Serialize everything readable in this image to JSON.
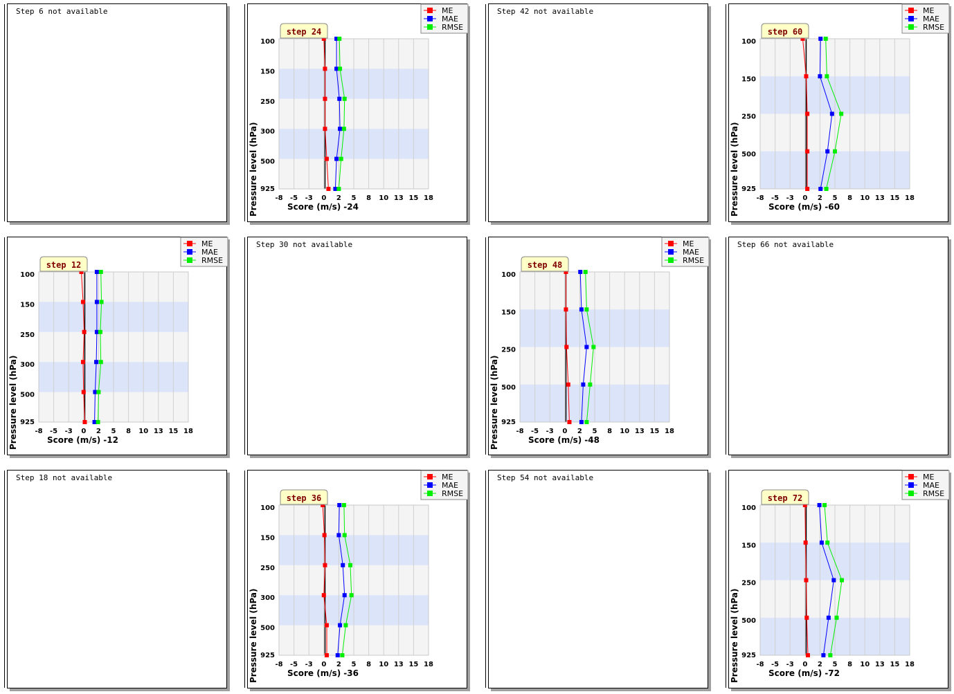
{
  "colors": {
    "ME": "#ff0000",
    "MAE": "#0000ff",
    "RMSE": "#00ee00",
    "band": "#dce4fa",
    "plot_bg": "#f4f4f4"
  },
  "legend": [
    "ME",
    "MAE",
    "RMSE"
  ],
  "axis": {
    "xlabel": "Score (m/s)",
    "ylabel": "Pressure level (hPa)"
  },
  "panels": [
    {
      "id": "p6",
      "available": false,
      "text": "Step 6 not available"
    },
    {
      "id": "p24",
      "available": true,
      "step_label": "step 24",
      "x_suffix": "-24"
    },
    {
      "id": "p42",
      "available": false,
      "text": "Step 42 not available"
    },
    {
      "id": "p60",
      "available": true,
      "step_label": "step 60",
      "x_suffix": "-60"
    },
    {
      "id": "p12",
      "available": true,
      "step_label": "step 12",
      "x_suffix": "-12"
    },
    {
      "id": "p30",
      "available": false,
      "text": "Step 30 not available"
    },
    {
      "id": "p48",
      "available": true,
      "step_label": "step 48",
      "x_suffix": "-48"
    },
    {
      "id": "p66",
      "available": false,
      "text": "Step 66 not available"
    },
    {
      "id": "p18",
      "available": false,
      "text": "Step 18 not available"
    },
    {
      "id": "p36",
      "available": true,
      "step_label": "step 36",
      "x_suffix": "-36"
    },
    {
      "id": "p54",
      "available": false,
      "text": "Step 54 not available"
    },
    {
      "id": "p72",
      "available": true,
      "step_label": "step 72",
      "x_suffix": "-72"
    }
  ],
  "chart_data": [
    {
      "type": "line",
      "step": 24,
      "levels": [
        "100",
        "150",
        "250",
        "300",
        "500",
        "925"
      ],
      "x_ticks": [
        "-8",
        "-5",
        "-3",
        "0",
        "2",
        "5",
        "8",
        "10",
        "13",
        "15",
        "18"
      ],
      "xlim": [
        -8,
        18
      ],
      "series": [
        {
          "name": "ME",
          "values": [
            -0.2,
            0.0,
            0.0,
            0.0,
            0.3,
            0.6
          ]
        },
        {
          "name": "MAE",
          "values": [
            2.0,
            2.0,
            2.5,
            2.6,
            2.0,
            1.8
          ]
        },
        {
          "name": "RMSE",
          "values": [
            2.5,
            2.6,
            3.4,
            3.3,
            2.8,
            2.4
          ]
        }
      ]
    },
    {
      "type": "line",
      "step": 60,
      "levels": [
        "100",
        "150",
        "250",
        "500",
        "925"
      ],
      "x_ticks": [
        "-8",
        "-5",
        "-3",
        "0",
        "2",
        "5",
        "8",
        "10",
        "13",
        "15",
        "18"
      ],
      "xlim": [
        -8,
        18
      ],
      "series": [
        {
          "name": "ME",
          "values": [
            -0.6,
            0.0,
            0.2,
            0.2,
            0.2
          ]
        },
        {
          "name": "MAE",
          "values": [
            2.5,
            2.4,
            4.5,
            3.7,
            2.5
          ]
        },
        {
          "name": "RMSE",
          "values": [
            3.4,
            3.6,
            6.1,
            5.0,
            3.5
          ]
        }
      ]
    },
    {
      "type": "line",
      "step": 12,
      "levels": [
        "100",
        "150",
        "250",
        "300",
        "500",
        "925"
      ],
      "x_ticks": [
        "-8",
        "-5",
        "-3",
        "0",
        "2",
        "5",
        "8",
        "10",
        "13",
        "15",
        "18"
      ],
      "xlim": [
        -8,
        18
      ],
      "series": [
        {
          "name": "ME",
          "values": [
            -0.6,
            -0.3,
            -0.1,
            -0.3,
            -0.2,
            0.0
          ]
        },
        {
          "name": "MAE",
          "values": [
            2.1,
            2.1,
            2.1,
            2.0,
            1.8,
            1.7
          ]
        },
        {
          "name": "RMSE",
          "values": [
            2.8,
            2.9,
            2.7,
            2.8,
            2.4,
            2.3
          ]
        }
      ]
    },
    {
      "type": "line",
      "step": 48,
      "levels": [
        "100",
        "150",
        "250",
        "500",
        "925"
      ],
      "x_ticks": [
        "-8",
        "-5",
        "-3",
        "0",
        "2",
        "5",
        "8",
        "10",
        "13",
        "15",
        "18"
      ],
      "xlim": [
        -8,
        18
      ],
      "series": [
        {
          "name": "ME",
          "values": [
            0.0,
            0.0,
            0.1,
            0.4,
            0.6
          ]
        },
        {
          "name": "MAE",
          "values": [
            2.5,
            2.7,
            3.6,
            3.0,
            2.7
          ]
        },
        {
          "name": "RMSE",
          "values": [
            3.4,
            3.6,
            4.8,
            4.2,
            3.6
          ]
        }
      ]
    },
    {
      "type": "line",
      "step": 36,
      "levels": [
        "100",
        "150",
        "250",
        "300",
        "500",
        "925"
      ],
      "x_ticks": [
        "-8",
        "-5",
        "-3",
        "0",
        "2",
        "5",
        "8",
        "10",
        "13",
        "15",
        "18"
      ],
      "xlim": [
        -8,
        18
      ],
      "series": [
        {
          "name": "ME",
          "values": [
            -0.4,
            -0.1,
            0.0,
            -0.2,
            0.3,
            0.3
          ]
        },
        {
          "name": "MAE",
          "values": [
            2.5,
            2.4,
            3.1,
            3.4,
            2.6,
            2.2
          ]
        },
        {
          "name": "RMSE",
          "values": [
            3.3,
            3.4,
            4.4,
            4.6,
            3.6,
            3.0
          ]
        }
      ]
    },
    {
      "type": "line",
      "step": 72,
      "levels": [
        "100",
        "150",
        "250",
        "500",
        "925"
      ],
      "x_ticks": [
        "-8",
        "-5",
        "-3",
        "0",
        "2",
        "5",
        "8",
        "10",
        "13",
        "15",
        "18"
      ],
      "xlim": [
        -8,
        18
      ],
      "series": [
        {
          "name": "ME",
          "values": [
            -0.2,
            -0.1,
            0.0,
            0.1,
            0.3
          ]
        },
        {
          "name": "MAE",
          "values": [
            2.3,
            2.7,
            4.8,
            3.9,
            3.0
          ]
        },
        {
          "name": "RMSE",
          "values": [
            3.2,
            3.7,
            6.2,
            5.3,
            4.2
          ]
        }
      ]
    }
  ]
}
